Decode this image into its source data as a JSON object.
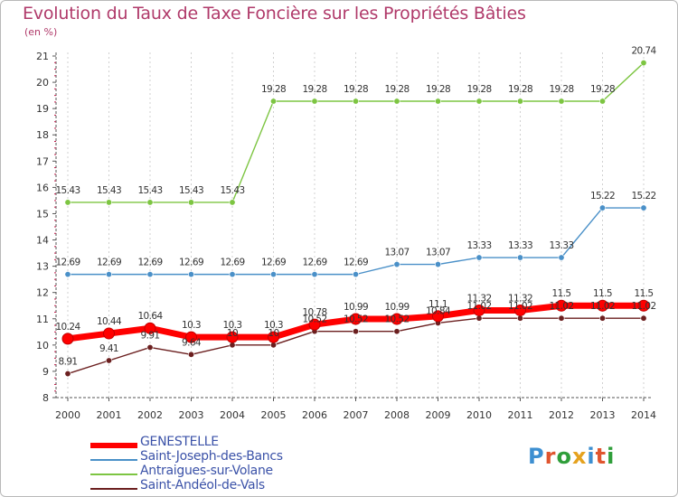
{
  "colors": {
    "GENESTELLE": "#ff0000",
    "Saint-Joseph-des-Bancs": "#4a90c8",
    "Antraigues-sur-Volane": "#7dc542",
    "Saint-Andéol-de-Vals": "#6b1f1f",
    "title": "#b03a6a",
    "axis": "#555555",
    "grid": "#d0d0d0",
    "label": "#333333"
  },
  "chart_data": {
    "type": "line",
    "title": "Evolution du Taux de Taxe Foncière sur les Propriétés Bâties",
    "ylabel": "(en %)",
    "xlabel": "",
    "ylim": [
      8,
      21
    ],
    "yticks": [
      8,
      9,
      10,
      11,
      12,
      13,
      14,
      15,
      16,
      17,
      18,
      19,
      20,
      21
    ],
    "grid": "vertical",
    "categories": [
      "2000",
      "2001",
      "2002",
      "2003",
      "2004",
      "2005",
      "2006",
      "2007",
      "2008",
      "2009",
      "2010",
      "2011",
      "2012",
      "2013",
      "2014"
    ],
    "series": [
      {
        "name": "Antraigues-sur-Volane",
        "values": [
          15.43,
          15.43,
          15.43,
          15.43,
          15.43,
          19.28,
          19.28,
          19.28,
          19.28,
          19.28,
          19.28,
          19.28,
          19.28,
          19.28,
          20.74
        ],
        "labels": [
          "15.43",
          "15.43",
          "15.43",
          "15.43",
          "15.43",
          "19.28",
          "19.28",
          "19.28",
          "19.28",
          "19.28",
          "19.28",
          "19.28",
          "19.28",
          "19.28",
          "20.74"
        ]
      },
      {
        "name": "Saint-Joseph-des-Bancs",
        "values": [
          12.69,
          12.69,
          12.69,
          12.69,
          12.69,
          12.69,
          12.69,
          12.69,
          13.07,
          13.07,
          13.33,
          13.33,
          13.33,
          15.22,
          15.22
        ],
        "labels": [
          "12.69",
          "12.69",
          "12.69",
          "12.69",
          "12.69",
          "12.69",
          "12.69",
          "12.69",
          "13.07",
          "13.07",
          "13.33",
          "13.33",
          "13.33",
          "15.22",
          "15.22"
        ]
      },
      {
        "name": "Saint-Andéol-de-Vals",
        "values": [
          8.91,
          9.41,
          9.91,
          9.64,
          10,
          10,
          10.52,
          10.52,
          10.52,
          10.84,
          11.02,
          11.02,
          11.02,
          11.02,
          11.02
        ],
        "labels": [
          "8.91",
          "9.41",
          "9.91",
          "9.64",
          "10",
          "10",
          "10.52",
          "10.52",
          "10.52",
          "10.84",
          "11.02",
          "11.02",
          "11.02",
          "11.02",
          "11.02"
        ]
      },
      {
        "name": "GENESTELLE",
        "values": [
          10.24,
          10.44,
          10.64,
          10.3,
          10.3,
          10.3,
          10.78,
          10.99,
          10.99,
          11.1,
          11.32,
          11.32,
          11.5,
          11.5,
          11.5
        ],
        "labels": [
          "10.24",
          "10.44",
          "10.64",
          "10.3",
          "10.3",
          "10.3",
          "10.78",
          "10.99",
          "10.99",
          "11.1",
          "11.32",
          "11.32",
          "11.5",
          "11.5",
          "11.5"
        ]
      }
    ],
    "legend": {
      "position": "bottom-left",
      "order": [
        "GENESTELLE",
        "Saint-Joseph-des-Bancs",
        "Antraigues-sur-Volane",
        "Saint-Andéol-de-Vals"
      ]
    }
  },
  "logo": {
    "text": "Proxiti"
  }
}
